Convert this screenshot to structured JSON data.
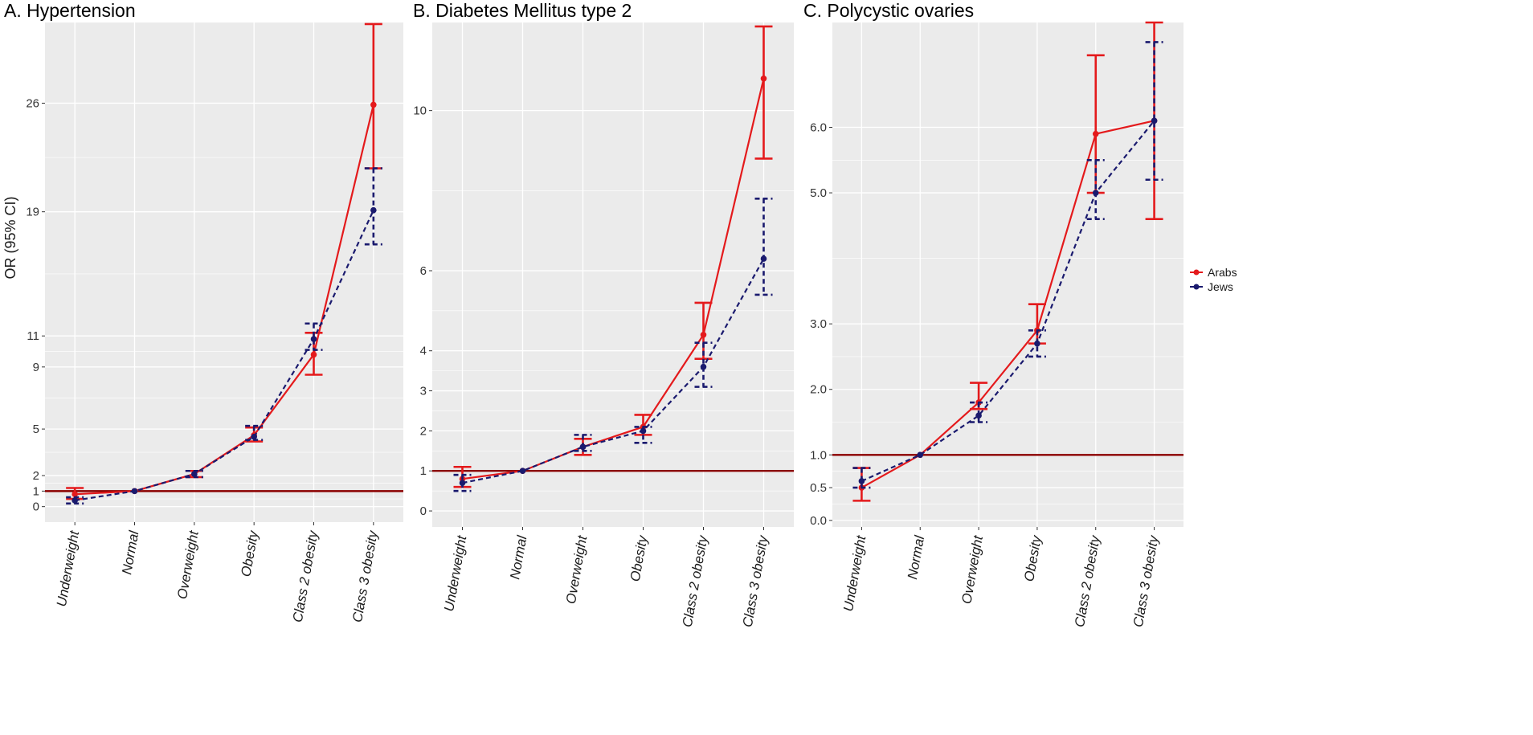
{
  "chart_data": [
    {
      "type": "line",
      "title": "A. Hypertension",
      "ylabel": "OR (95% CI)",
      "xlabel": "",
      "categories": [
        "Underweight",
        "Normal",
        "Overweight",
        "Obesity",
        "Class 2 obesity",
        "Class 3 obesity"
      ],
      "yticks": [
        0,
        1,
        2,
        5,
        9,
        11,
        19,
        26
      ],
      "ylim": [
        -1,
        31.2
      ],
      "reference_line": 1,
      "series": [
        {
          "name": "Arabs",
          "color": "#e41a1c",
          "linestyle": "solid",
          "values": [
            0.8,
            1,
            2.1,
            4.6,
            9.8,
            25.9
          ],
          "lower": [
            0.5,
            1,
            1.9,
            4.2,
            8.5,
            21.8
          ],
          "upper": [
            1.2,
            1,
            2.3,
            5.1,
            11.2,
            31.1
          ]
        },
        {
          "name": "Jews",
          "color": "#1a1a6e",
          "linestyle": "dashed",
          "values": [
            0.4,
            1,
            2.1,
            4.5,
            10.8,
            19.1
          ],
          "lower": [
            0.2,
            1,
            1.9,
            4.3,
            10.1,
            16.9
          ],
          "upper": [
            0.6,
            1,
            2.3,
            5.2,
            11.8,
            21.8
          ]
        }
      ]
    },
    {
      "type": "line",
      "title": "B. Diabetes Mellitus type 2",
      "ylabel": "",
      "xlabel": "",
      "categories": [
        "Underweight",
        "Normal",
        "Overweight",
        "Obesity",
        "Class 2 obesity",
        "Class 3 obesity"
      ],
      "yticks": [
        0,
        1,
        2,
        3,
        4,
        6,
        10
      ],
      "ylim": [
        -0.4,
        12.2
      ],
      "reference_line": 1,
      "series": [
        {
          "name": "Arabs",
          "color": "#e41a1c",
          "linestyle": "solid",
          "values": [
            0.8,
            1,
            1.6,
            2.1,
            4.4,
            10.8
          ],
          "lower": [
            0.6,
            1,
            1.4,
            1.9,
            3.8,
            8.8
          ],
          "upper": [
            1.1,
            1,
            1.8,
            2.4,
            5.2,
            12.1
          ]
        },
        {
          "name": "Jews",
          "color": "#1a1a6e",
          "linestyle": "dashed",
          "values": [
            0.7,
            1,
            1.6,
            2.0,
            3.6,
            6.3
          ],
          "lower": [
            0.5,
            1,
            1.5,
            1.7,
            3.1,
            5.4
          ],
          "upper": [
            0.9,
            1,
            1.9,
            2.1,
            4.2,
            7.8
          ]
        }
      ]
    },
    {
      "type": "line",
      "title": "C. Polycystic ovaries",
      "ylabel": "",
      "xlabel": "",
      "categories": [
        "Underweight",
        "Normal",
        "Overweight",
        "Obesity",
        "Class 2 obesity",
        "Class 3 obesity"
      ],
      "yticks": [
        0.0,
        0.5,
        1.0,
        2.0,
        3.0,
        5.0,
        6.0
      ],
      "ytick_labels": [
        "0.0",
        "0.5",
        "1.0",
        "2.0",
        "3.0",
        "5.0",
        "6.0"
      ],
      "ylim": [
        -0.1,
        7.6
      ],
      "reference_line": 1.0,
      "series": [
        {
          "name": "Arabs",
          "color": "#e41a1c",
          "linestyle": "solid",
          "values": [
            0.5,
            1.0,
            1.8,
            2.9,
            5.9,
            6.1
          ],
          "lower": [
            0.3,
            1.0,
            1.7,
            2.7,
            5.0,
            4.6
          ],
          "upper": [
            0.8,
            1.0,
            2.1,
            3.3,
            7.1,
            7.6
          ]
        },
        {
          "name": "Jews",
          "color": "#1a1a6e",
          "linestyle": "dashed",
          "values": [
            0.6,
            1.0,
            1.6,
            2.7,
            5.0,
            6.1
          ],
          "lower": [
            0.5,
            1.0,
            1.5,
            2.5,
            4.6,
            5.2
          ],
          "upper": [
            0.8,
            1.0,
            1.8,
            2.9,
            5.5,
            7.3
          ]
        }
      ]
    }
  ],
  "legend": {
    "placement": "right",
    "entries": [
      {
        "label": "Arabs",
        "color": "#e41a1c"
      },
      {
        "label": "Jews",
        "color": "#1a1a6e"
      }
    ]
  },
  "style": {
    "panel_bg": "#ebebeb",
    "grid_color": "#ffffff",
    "reference_color": "#8b0000"
  }
}
